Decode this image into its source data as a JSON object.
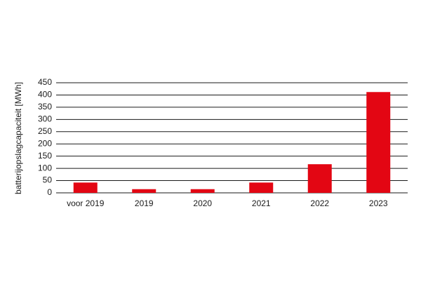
{
  "chart_data": {
    "type": "bar",
    "title": "",
    "xlabel": "",
    "ylabel": "batterijopslagcapaciteit [MWh]",
    "categories": [
      "voor 2019",
      "2019",
      "2020",
      "2021",
      "2022",
      "2023"
    ],
    "values": [
      42,
      15,
      15,
      42,
      117,
      412
    ],
    "ylim": [
      0,
      450
    ],
    "yticks": [
      "0",
      "50",
      "100",
      "150",
      "200",
      "250",
      "300",
      "350",
      "400",
      "450"
    ],
    "grid": "horizontal",
    "bar_color": "#e30613",
    "grid_color": "#1a1a1a"
  }
}
